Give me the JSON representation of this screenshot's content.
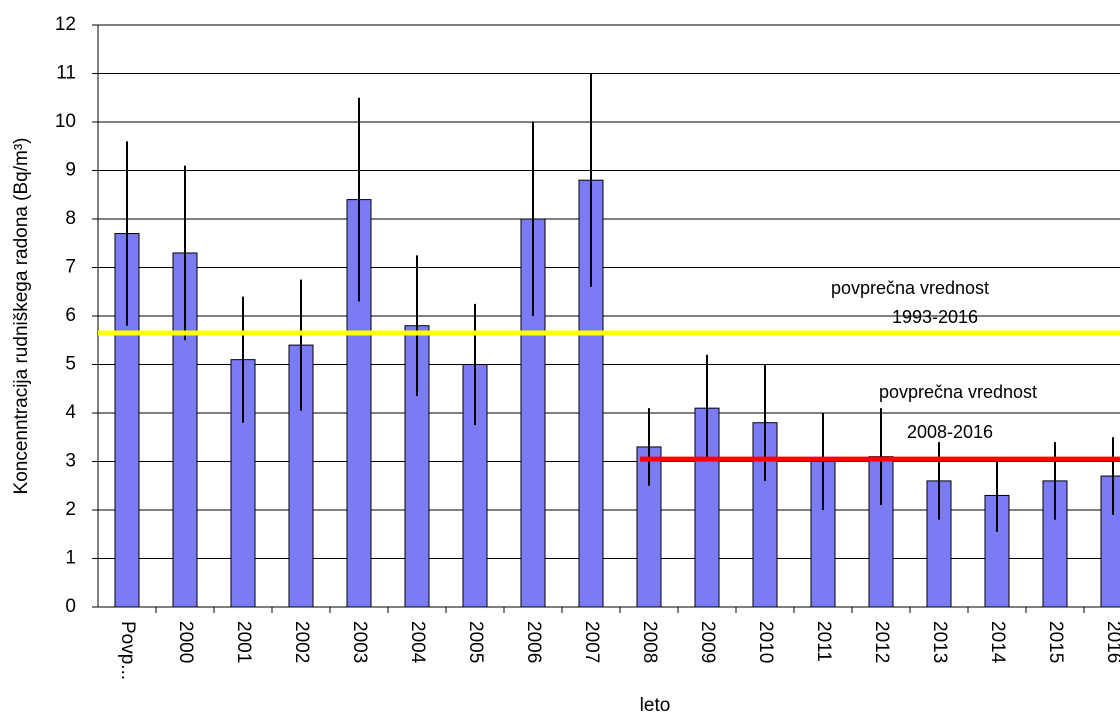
{
  "chart_data": {
    "type": "bar",
    "y_label": "Koncenntracija rudniškega radona (Bq/m³)",
    "x_label": "leto",
    "categories": [
      "Povp...",
      "2000",
      "2001",
      "2002",
      "2003",
      "2004",
      "2005",
      "2006",
      "2007",
      "2008",
      "2009",
      "2010",
      "2011",
      "2012",
      "2013",
      "2014",
      "2015",
      "2016"
    ],
    "series": [
      {
        "color": "#7b7bf5",
        "values": [
          7.7,
          7.3,
          5.1,
          5.4,
          8.4,
          5.8,
          5.0,
          8.0,
          8.8,
          3.3,
          4.1,
          3.8,
          3.0,
          3.1,
          2.6,
          2.3,
          2.6,
          2.7
        ],
        "errors": [
          1.9,
          1.8,
          1.3,
          1.35,
          2.1,
          1.45,
          1.25,
          2.0,
          2.2,
          0.8,
          1.1,
          1.2,
          1.0,
          1.0,
          0.8,
          0.75,
          0.8,
          0.8
        ]
      }
    ],
    "reference_lines": [
      {
        "value": 5.65,
        "color": "#ffff00",
        "start": 0,
        "label": [
          "povprečna vrednost",
          "1993-2016"
        ]
      },
      {
        "value": 3.05,
        "color": "#ff0000",
        "start": 9,
        "label": [
          "povprečna vrednost",
          "2008-2016"
        ]
      }
    ],
    "ylim": [
      0,
      12
    ],
    "yticks": [
      0,
      1,
      2,
      3,
      4,
      5,
      6,
      7,
      8,
      9,
      10,
      11,
      12
    ],
    "grid": true
  }
}
